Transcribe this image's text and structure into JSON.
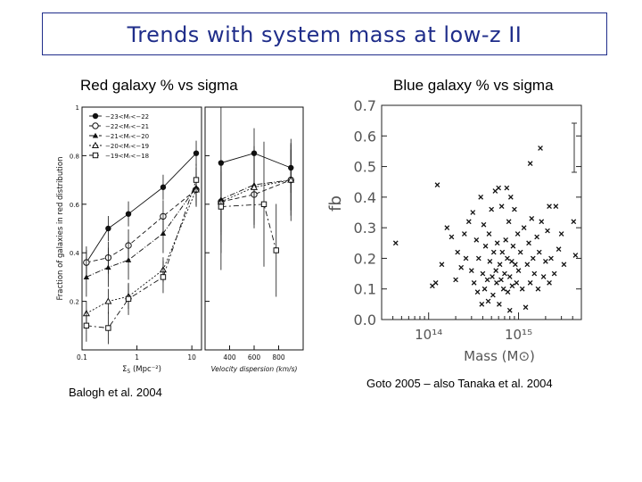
{
  "slide": {
    "title": "Trends with system mass at low-z II",
    "left_caption": "Red galaxy % vs sigma",
    "right_caption": "Blue galaxy % vs sigma",
    "left_credit": "Balogh et al. 2004",
    "right_credit": "Goto 2005 – also Tanaka et al. 2004"
  },
  "chart_data": [
    {
      "type": "line",
      "panel": "left-a",
      "ylabel": "Fraction of galaxies in red distribution",
      "xlabel_main": "Σ",
      "xlabel_sub": "5",
      "xlabel_unit": "(Mpc⁻²)",
      "xscale": "log",
      "xlim": [
        0.1,
        15
      ],
      "ylim": [
        0.0,
        1.0
      ],
      "x_ticks": [
        "0.1",
        "1",
        "10"
      ],
      "y_ticks": [
        "0.2",
        "0.4",
        "0.6",
        "0.8",
        "1"
      ],
      "legend": [
        "−23<Mᵣ<−22",
        "−22<Mᵣ<−21",
        "−21<Mᵣ<−20",
        "−20<Mᵣ<−19",
        "−19<Mᵣ<−18"
      ],
      "legend_position": "top-left",
      "series": [
        {
          "name": "−23<Mᵣ<−22",
          "marker": "filled-circle",
          "x": [
            0.12,
            0.3,
            0.7,
            3,
            12
          ],
          "y": [
            0.36,
            0.5,
            0.56,
            0.67,
            0.81
          ]
        },
        {
          "name": "−22<Mᵣ<−21",
          "marker": "open-circle",
          "x": [
            0.12,
            0.3,
            0.7,
            3,
            12
          ],
          "y": [
            0.36,
            0.38,
            0.43,
            0.55,
            0.66
          ]
        },
        {
          "name": "−21<Mᵣ<−20",
          "marker": "filled-triangle",
          "x": [
            0.12,
            0.3,
            0.7,
            3,
            12
          ],
          "y": [
            0.3,
            0.34,
            0.37,
            0.48,
            0.67
          ]
        },
        {
          "name": "−20<Mᵣ<−19",
          "marker": "open-triangle",
          "x": [
            0.12,
            0.3,
            0.7,
            3,
            12
          ],
          "y": [
            0.15,
            0.2,
            0.22,
            0.33,
            0.66
          ]
        },
        {
          "name": "−19<Mᵣ<−18",
          "marker": "open-square",
          "x": [
            0.12,
            0.3,
            0.7,
            3,
            12
          ],
          "y": [
            0.1,
            0.09,
            0.21,
            0.3,
            0.7
          ]
        }
      ]
    },
    {
      "type": "line",
      "panel": "left-b",
      "xlabel": "Velocity dispersion (km/s)",
      "xlim": [
        200,
        1000
      ],
      "ylim": [
        0.0,
        1.0
      ],
      "x_ticks": [
        "400",
        "600",
        "800"
      ],
      "series": [
        {
          "name": "−23<Mᵣ<−22",
          "marker": "filled-circle",
          "x": [
            330,
            600,
            900
          ],
          "y": [
            0.77,
            0.81,
            0.75
          ]
        },
        {
          "name": "−22<Mᵣ<−21",
          "marker": "open-circle",
          "x": [
            330,
            600,
            900
          ],
          "y": [
            0.61,
            0.64,
            0.7
          ]
        },
        {
          "name": "−21<Mᵣ<−20",
          "marker": "filled-triangle",
          "x": [
            330,
            600,
            900
          ],
          "y": [
            0.62,
            0.68,
            0.7
          ]
        },
        {
          "name": "−20<Mᵣ<−19",
          "marker": "open-triangle",
          "x": [
            330,
            600,
            900
          ],
          "y": [
            0.61,
            0.67,
            0.7
          ]
        },
        {
          "name": "−19<Mᵣ<−18",
          "marker": "open-square",
          "x": [
            330,
            680,
            780
          ],
          "y": [
            0.59,
            0.6,
            0.41
          ]
        }
      ]
    },
    {
      "type": "scatter",
      "panel": "right",
      "ylabel": "fb",
      "xlabel": "Mass (M⊙)",
      "xscale": "log",
      "xlim": [
        30000000000000.0,
        5000000000000000.0
      ],
      "ylim": [
        0.0,
        0.7
      ],
      "x_ticks": [
        "10¹⁴",
        "10¹⁵"
      ],
      "y_ticks": [
        "0.0",
        "0.1",
        "0.2",
        "0.3",
        "0.4",
        "0.5",
        "0.6",
        "0.7"
      ],
      "marker": "x",
      "points": [
        [
          110000000000000.0,
          0.11
        ],
        [
          120000000000000.0,
          0.12
        ],
        [
          140000000000000.0,
          0.18
        ],
        [
          160000000000000.0,
          0.3
        ],
        [
          180000000000000.0,
          0.27
        ],
        [
          200000000000000.0,
          0.13
        ],
        [
          210000000000000.0,
          0.22
        ],
        [
          230000000000000.0,
          0.17
        ],
        [
          250000000000000.0,
          0.28
        ],
        [
          260000000000000.0,
          0.2
        ],
        [
          280000000000000.0,
          0.32
        ],
        [
          300000000000000.0,
          0.16
        ],
        [
          310000000000000.0,
          0.35
        ],
        [
          320000000000000.0,
          0.12
        ],
        [
          340000000000000.0,
          0.26
        ],
        [
          350000000000000.0,
          0.09
        ],
        [
          360000000000000.0,
          0.2
        ],
        [
          380000000000000.0,
          0.4
        ],
        [
          390000000000000.0,
          0.05
        ],
        [
          400000000000000.0,
          0.15
        ],
        [
          410000000000000.0,
          0.31
        ],
        [
          420000000000000.0,
          0.1
        ],
        [
          430000000000000.0,
          0.24
        ],
        [
          450000000000000.0,
          0.13
        ],
        [
          460000000000000.0,
          0.06
        ],
        [
          470000000000000.0,
          0.28
        ],
        [
          480000000000000.0,
          0.19
        ],
        [
          500000000000000.0,
          0.36
        ],
        [
          510000000000000.0,
          0.14
        ],
        [
          520000000000000.0,
          0.08
        ],
        [
          530000000000000.0,
          0.22
        ],
        [
          550000000000000.0,
          0.42
        ],
        [
          560000000000000.0,
          0.16
        ],
        [
          570000000000000.0,
          0.12
        ],
        [
          580000000000000.0,
          0.25
        ],
        [
          600000000000000.0,
          0.43
        ],
        [
          610000000000000.0,
          0.05
        ],
        [
          620000000000000.0,
          0.18
        ],
        [
          640000000000000.0,
          0.13
        ],
        [
          650000000000000.0,
          0.37
        ],
        [
          660000000000000.0,
          0.22
        ],
        [
          680000000000000.0,
          0.1
        ],
        [
          700000000000000.0,
          0.15
        ],
        [
          720000000000000.0,
          0.26
        ],
        [
          740000000000000.0,
          0.43
        ],
        [
          750000000000000.0,
          0.2
        ],
        [
          760000000000000.0,
          0.09
        ],
        [
          780000000000000.0,
          0.32
        ],
        [
          800000000000000.0,
          0.14
        ],
        [
          820000000000000.0,
          0.4
        ],
        [
          840000000000000.0,
          0.19
        ],
        [
          850000000000000.0,
          0.11
        ],
        [
          870000000000000.0,
          0.24
        ],
        [
          900000000000000.0,
          0.36
        ],
        [
          920000000000000.0,
          0.18
        ],
        [
          950000000000000.0,
          0.12
        ],
        [
          980000000000000.0,
          0.28
        ],
        [
          1000000000000000.0,
          0.16
        ],
        [
          1050000000000000.0,
          0.22
        ],
        [
          1100000000000000.0,
          0.1
        ],
        [
          1150000000000000.0,
          0.3
        ],
        [
          1200000000000000.0,
          0.04
        ],
        [
          1250000000000000.0,
          0.18
        ],
        [
          1300000000000000.0,
          0.25
        ],
        [
          1350000000000000.0,
          0.12
        ],
        [
          1400000000000000.0,
          0.33
        ],
        [
          1450000000000000.0,
          0.2
        ],
        [
          1500000000000000.0,
          0.15
        ],
        [
          1600000000000000.0,
          0.27
        ],
        [
          1650000000000000.0,
          0.1
        ],
        [
          1700000000000000.0,
          0.22
        ],
        [
          1800000000000000.0,
          0.32
        ],
        [
          1900000000000000.0,
          0.14
        ],
        [
          2000000000000000.0,
          0.19
        ],
        [
          2100000000000000.0,
          0.29
        ],
        [
          2200000000000000.0,
          0.12
        ],
        [
          2300000000000000.0,
          0.2
        ],
        [
          2500000000000000.0,
          0.15
        ],
        [
          2600000000000000.0,
          0.37
        ],
        [
          2800000000000000.0,
          0.23
        ],
        [
          3000000000000000.0,
          0.28
        ],
        [
          3200000000000000.0,
          0.18
        ],
        [
          1350000000000000.0,
          0.51
        ],
        [
          1750000000000000.0,
          0.56
        ],
        [
          4100000000000000.0,
          0.32
        ],
        [
          4300000000000000.0,
          0.21
        ],
        [
          125000000000000.0,
          0.44
        ],
        [
          43000000000000.0,
          0.25
        ],
        [
          2200000000000000.0,
          0.37
        ],
        [
          800000000000000.0,
          0.03
        ]
      ]
    }
  ]
}
